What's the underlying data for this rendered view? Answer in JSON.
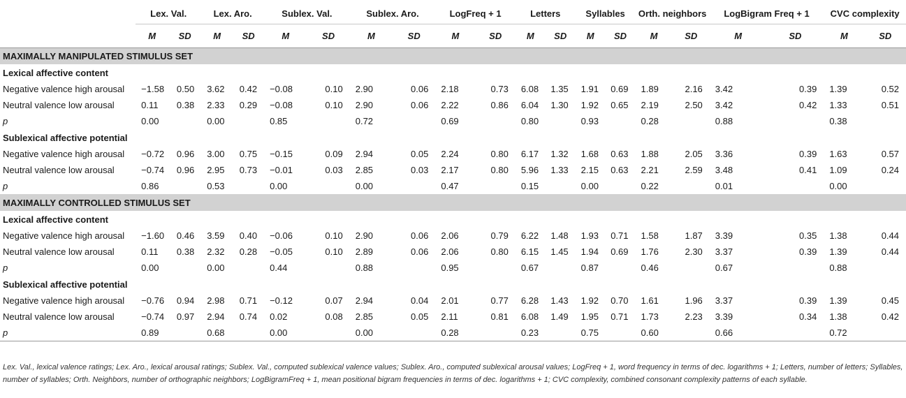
{
  "header": {
    "columns": [
      "Lex. Val.",
      "Lex. Aro.",
      "Sublex. Val.",
      "Sublex. Aro.",
      "LogFreq + 1",
      "Letters",
      "Syllables",
      "Orth. neighbors",
      "LogBigram Freq + 1",
      "CVC complexity"
    ],
    "m_label": "M",
    "sd_label": "SD"
  },
  "sections": [
    {
      "title": "MAXIMALLY MANIPULATED STIMULUS SET",
      "groups": [
        {
          "title": "Lexical affective content",
          "rows": [
            {
              "label": "Negative valence high arousal",
              "values": [
                "−1.58",
                "0.50",
                "3.62",
                "0.42",
                "−0.08",
                "0.10",
                "2.90",
                "0.06",
                "2.18",
                "0.73",
                "6.08",
                "1.35",
                "1.91",
                "0.69",
                "1.89",
                "2.16",
                "3.42",
                "0.39",
                "1.39",
                "0.52"
              ]
            },
            {
              "label": "Neutral valence low arousal",
              "values": [
                "0.11",
                "0.38",
                "2.33",
                "0.29",
                "−0.08",
                "0.10",
                "2.90",
                "0.06",
                "2.22",
                "0.86",
                "6.04",
                "1.30",
                "1.92",
                "0.65",
                "2.19",
                "2.50",
                "3.42",
                "0.42",
                "1.33",
                "0.51"
              ]
            }
          ],
          "p_label": "p",
          "p_values": [
            "0.00",
            "0.00",
            "0.85",
            "0.72",
            "0.69",
            "0.80",
            "0.93",
            "0.28",
            "0.88",
            "0.38"
          ]
        },
        {
          "title": "Sublexical affective potential",
          "rows": [
            {
              "label": "Negative valence high arousal",
              "values": [
                "−0.72",
                "0.96",
                "3.00",
                "0.75",
                "−0.15",
                "0.09",
                "2.94",
                "0.05",
                "2.24",
                "0.80",
                "6.17",
                "1.32",
                "1.68",
                "0.63",
                "1.88",
                "2.05",
                "3.36",
                "0.39",
                "1.63",
                "0.57"
              ]
            },
            {
              "label": "Neutral valence low arousal",
              "values": [
                "−0.74",
                "0.96",
                "2.95",
                "0.73",
                "−0.01",
                "0.03",
                "2.85",
                "0.03",
                "2.17",
                "0.80",
                "5.96",
                "1.33",
                "2.15",
                "0.63",
                "2.21",
                "2.59",
                "3.48",
                "0.41",
                "1.09",
                "0.24"
              ]
            }
          ],
          "p_label": "p",
          "p_values": [
            "0.86",
            "0.53",
            "0.00",
            "0.00",
            "0.47",
            "0.15",
            "0.00",
            "0.22",
            "0.01",
            "0.00"
          ]
        }
      ]
    },
    {
      "title": "MAXIMALLY CONTROLLED STIMULUS SET",
      "groups": [
        {
          "title": "Lexical affective content",
          "rows": [
            {
              "label": "Negative valence high arousal",
              "values": [
                "−1.60",
                "0.46",
                "3.59",
                "0.40",
                "−0.06",
                "0.10",
                "2.90",
                "0.06",
                "2.06",
                "0.79",
                "6.22",
                "1.48",
                "1.93",
                "0.71",
                "1.58",
                "1.87",
                "3.39",
                "0.35",
                "1.38",
                "0.44"
              ]
            },
            {
              "label": "Neutral valence low arousal",
              "values": [
                "0.11",
                "0.38",
                "2.32",
                "0.28",
                "−0.05",
                "0.10",
                "2.89",
                "0.06",
                "2.06",
                "0.80",
                "6.15",
                "1.45",
                "1.94",
                "0.69",
                "1.76",
                "2.30",
                "3.37",
                "0.39",
                "1.39",
                "0.44"
              ]
            }
          ],
          "p_label": "p",
          "p_values": [
            "0.00",
            "0.00",
            "0.44",
            "0.88",
            "0.95",
            "0.67",
            "0.87",
            "0.46",
            "0.67",
            "0.88"
          ]
        },
        {
          "title": "Sublexical affective potential",
          "rows": [
            {
              "label": "Negative valence high arousal",
              "values": [
                "−0.76",
                "0.94",
                "2.98",
                "0.71",
                "−0.12",
                "0.07",
                "2.94",
                "0.04",
                "2.01",
                "0.77",
                "6.28",
                "1.43",
                "1.92",
                "0.70",
                "1.61",
                "1.96",
                "3.37",
                "0.39",
                "1.39",
                "0.45"
              ]
            },
            {
              "label": "Neutral valence low arousal",
              "values": [
                "−0.74",
                "0.97",
                "2.94",
                "0.74",
                "0.02",
                "0.08",
                "2.85",
                "0.05",
                "2.11",
                "0.81",
                "6.08",
                "1.49",
                "1.95",
                "0.71",
                "1.73",
                "2.23",
                "3.39",
                "0.34",
                "1.38",
                "0.42"
              ]
            }
          ],
          "p_label": "p",
          "p_values": [
            "0.89",
            "0.68",
            "0.00",
            "0.00",
            "0.28",
            "0.23",
            "0.75",
            "0.60",
            "0.66",
            "0.72"
          ]
        }
      ]
    }
  ],
  "footnote": "Lex. Val., lexical valence ratings; Lex. Aro., lexical arousal ratings; Sublex. Val., computed sublexical valence values; Sublex. Aro., computed sublexical arousal values; LogFreq + 1, word frequency in terms of dec. logarithms + 1; Letters, number of letters; Syllables, number of syllables; Orth. Neighbors, number of orthographic neighbors; LogBigramFreq + 1, mean positional bigram frequencies in terms of dec. logarithms + 1; CVC complexity, combined consonant complexity patterns of each syllable."
}
